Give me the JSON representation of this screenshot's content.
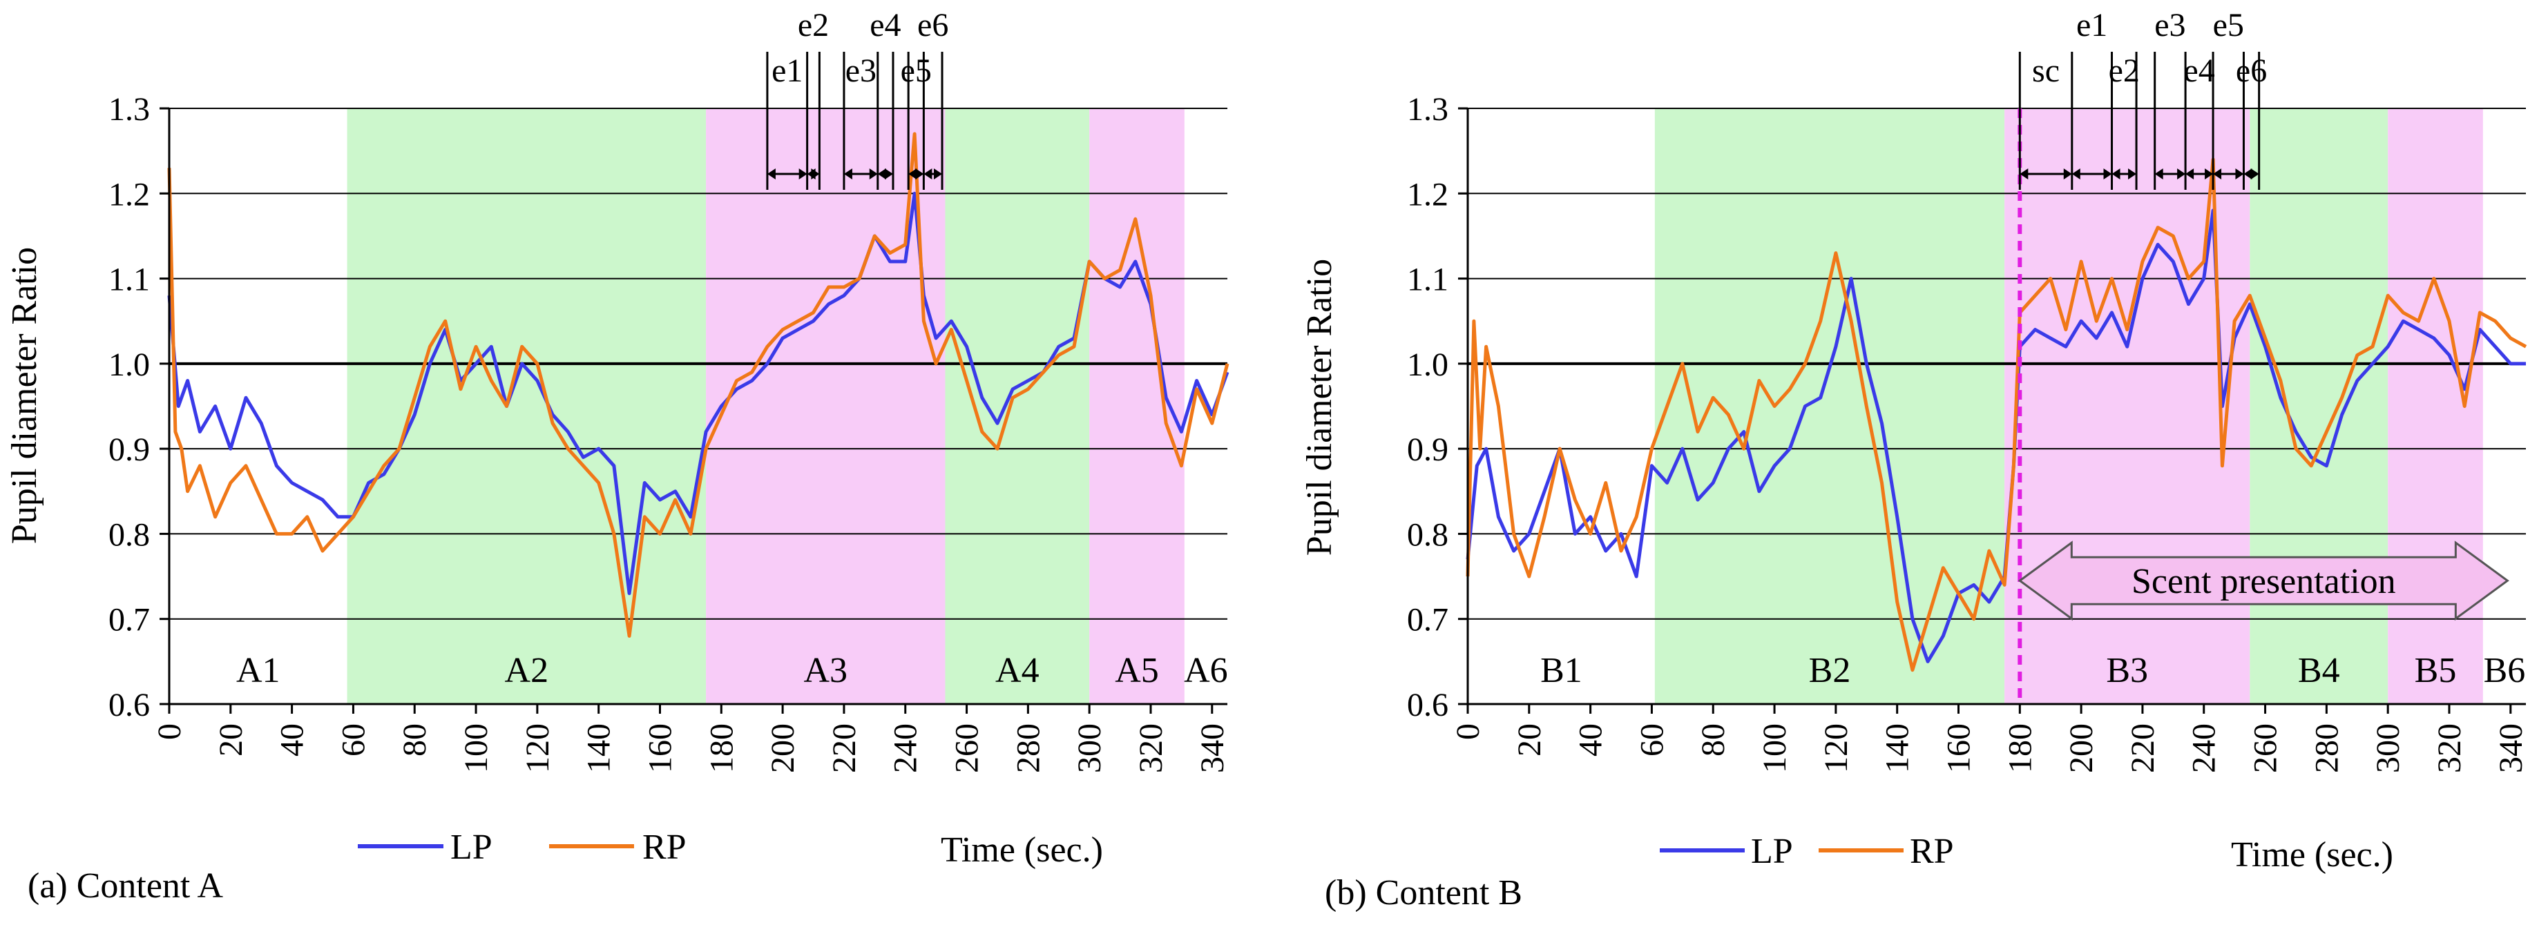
{
  "colors": {
    "lp": "#3a3ae8",
    "rp": "#f07818",
    "green_band": "#ccf7cc",
    "pink_band": "#f8ccf8",
    "dashed_line": "#e01ee0",
    "arrow_fill": "#f5c0f0"
  },
  "chart_data": [
    {
      "type": "line",
      "panel": "a",
      "caption": "(a) Content A",
      "xlabel": "Time (sec.)",
      "ylabel": "Pupil diameter Ratio",
      "xlim": [
        0,
        345
      ],
      "ylim": [
        0.6,
        1.3
      ],
      "xticks": [
        0,
        20,
        40,
        60,
        80,
        100,
        120,
        140,
        160,
        180,
        200,
        220,
        240,
        260,
        280,
        300,
        320,
        340
      ],
      "yticks": [
        0.6,
        0.7,
        0.8,
        0.9,
        1.0,
        1.1,
        1.2,
        1.3
      ],
      "xtick_labels": [
        "0",
        "20",
        "40",
        "60",
        "80",
        "100",
        "120",
        "140",
        "160",
        "180",
        "200",
        "220",
        "240",
        "260",
        "280",
        "300",
        "320",
        "340"
      ],
      "ytick_labels": [
        "0.6",
        "0.7",
        "0.8",
        "0.9",
        "1.0",
        "1.1",
        "1.2",
        "1.3"
      ],
      "grid": "horizontal",
      "legend": [
        {
          "name": "LP",
          "key": "lp"
        },
        {
          "name": "RP",
          "key": "rp"
        }
      ],
      "regions": [
        {
          "label": "A1",
          "start": 0,
          "end": 58,
          "kind": "white"
        },
        {
          "label": "A2",
          "start": 58,
          "end": 175,
          "kind": "green"
        },
        {
          "label": "A3",
          "start": 175,
          "end": 253,
          "kind": "pink"
        },
        {
          "label": "A4",
          "start": 253,
          "end": 300,
          "kind": "green"
        },
        {
          "label": "A5",
          "start": 300,
          "end": 331,
          "kind": "pink"
        },
        {
          "label": "A6",
          "start": 331,
          "end": 345,
          "kind": "white"
        }
      ],
      "events": [
        {
          "label": "e1",
          "start": 195,
          "end": 208
        },
        {
          "label": "e2",
          "start": 208,
          "end": 212
        },
        {
          "label": "e3",
          "start": 220,
          "end": 231
        },
        {
          "label": "e4",
          "start": 231,
          "end": 236
        },
        {
          "label": "e5",
          "start": 241,
          "end": 246
        },
        {
          "label": "e6",
          "start": 246,
          "end": 252
        }
      ],
      "series": [
        {
          "name": "LP",
          "key": "lp",
          "x": [
            0,
            3,
            6,
            10,
            15,
            20,
            25,
            30,
            35,
            40,
            45,
            50,
            55,
            60,
            65,
            70,
            75,
            80,
            85,
            90,
            95,
            100,
            105,
            110,
            115,
            120,
            125,
            130,
            135,
            140,
            145,
            150,
            155,
            160,
            165,
            170,
            175,
            180,
            185,
            190,
            195,
            200,
            205,
            210,
            215,
            220,
            225,
            230,
            235,
            240,
            243,
            246,
            250,
            255,
            260,
            265,
            270,
            275,
            280,
            285,
            290,
            295,
            300,
            305,
            310,
            315,
            320,
            325,
            330,
            335,
            340,
            345
          ],
          "y": [
            1.08,
            0.95,
            0.98,
            0.92,
            0.95,
            0.9,
            0.96,
            0.93,
            0.88,
            0.86,
            0.85,
            0.84,
            0.82,
            0.82,
            0.86,
            0.87,
            0.9,
            0.94,
            1.0,
            1.04,
            0.98,
            1.0,
            1.02,
            0.95,
            1.0,
            0.98,
            0.94,
            0.92,
            0.89,
            0.9,
            0.88,
            0.73,
            0.86,
            0.84,
            0.85,
            0.82,
            0.92,
            0.95,
            0.97,
            0.98,
            1.0,
            1.03,
            1.04,
            1.05,
            1.07,
            1.08,
            1.1,
            1.15,
            1.12,
            1.12,
            1.2,
            1.08,
            1.03,
            1.05,
            1.02,
            0.96,
            0.93,
            0.97,
            0.98,
            0.99,
            1.02,
            1.03,
            1.12,
            1.1,
            1.09,
            1.12,
            1.07,
            0.96,
            0.92,
            0.98,
            0.94,
            0.99
          ]
        },
        {
          "name": "RP",
          "key": "rp",
          "x": [
            0,
            2,
            4,
            6,
            10,
            15,
            20,
            25,
            30,
            35,
            40,
            45,
            50,
            55,
            60,
            65,
            70,
            75,
            80,
            85,
            90,
            95,
            100,
            105,
            110,
            115,
            120,
            125,
            130,
            135,
            140,
            145,
            150,
            155,
            160,
            165,
            170,
            175,
            180,
            185,
            190,
            195,
            200,
            205,
            210,
            215,
            220,
            225,
            230,
            235,
            240,
            243,
            246,
            250,
            255,
            260,
            265,
            270,
            275,
            280,
            285,
            290,
            295,
            300,
            305,
            310,
            315,
            320,
            325,
            330,
            335,
            340,
            345
          ],
          "y": [
            1.23,
            0.92,
            0.9,
            0.85,
            0.88,
            0.82,
            0.86,
            0.88,
            0.84,
            0.8,
            0.8,
            0.82,
            0.78,
            0.8,
            0.82,
            0.85,
            0.88,
            0.9,
            0.96,
            1.02,
            1.05,
            0.97,
            1.02,
            0.98,
            0.95,
            1.02,
            1.0,
            0.93,
            0.9,
            0.88,
            0.86,
            0.8,
            0.68,
            0.82,
            0.8,
            0.84,
            0.8,
            0.9,
            0.94,
            0.98,
            0.99,
            1.02,
            1.04,
            1.05,
            1.06,
            1.09,
            1.09,
            1.1,
            1.15,
            1.13,
            1.14,
            1.27,
            1.05,
            1.0,
            1.04,
            0.98,
            0.92,
            0.9,
            0.96,
            0.97,
            0.99,
            1.01,
            1.02,
            1.12,
            1.1,
            1.11,
            1.17,
            1.08,
            0.93,
            0.88,
            0.97,
            0.93,
            1.0
          ]
        }
      ]
    },
    {
      "type": "line",
      "panel": "b",
      "caption": "(b) Content B",
      "xlabel": "Time (sec.)",
      "ylabel": "Pupil diameter Ratio",
      "xlim": [
        0,
        345
      ],
      "ylim": [
        0.6,
        1.3
      ],
      "xticks": [
        0,
        20,
        40,
        60,
        80,
        100,
        120,
        140,
        160,
        180,
        200,
        220,
        240,
        260,
        280,
        300,
        320,
        340
      ],
      "yticks": [
        0.6,
        0.7,
        0.8,
        0.9,
        1.0,
        1.1,
        1.2,
        1.3
      ],
      "xtick_labels": [
        "0",
        "20",
        "40",
        "60",
        "80",
        "100",
        "120",
        "140",
        "160",
        "180",
        "200",
        "220",
        "240",
        "260",
        "280",
        "300",
        "320",
        "340"
      ],
      "ytick_labels": [
        "0.6",
        "0.7",
        "0.8",
        "0.9",
        "1.0",
        "1.1",
        "1.2",
        "1.3"
      ],
      "grid": "horizontal",
      "legend": [
        {
          "name": "LP",
          "key": "lp"
        },
        {
          "name": "RP",
          "key": "rp"
        }
      ],
      "regions": [
        {
          "label": "B1",
          "start": 0,
          "end": 61,
          "kind": "white"
        },
        {
          "label": "B2",
          "start": 61,
          "end": 175,
          "kind": "green"
        },
        {
          "label": "B3",
          "start": 175,
          "end": 255,
          "kind": "pink"
        },
        {
          "label": "B4",
          "start": 255,
          "end": 300,
          "kind": "green"
        },
        {
          "label": "B5",
          "start": 300,
          "end": 331,
          "kind": "pink"
        },
        {
          "label": "B6",
          "start": 331,
          "end": 345,
          "kind": "white"
        }
      ],
      "scent_marker": {
        "label": "sc",
        "x": 180
      },
      "scent_presentation": {
        "label": "Scent presentation",
        "start": 180,
        "end": 339,
        "y": 0.745
      },
      "events": [
        {
          "label": "sc",
          "start": 180,
          "end": 197
        },
        {
          "label": "e1",
          "start": 197,
          "end": 210
        },
        {
          "label": "e2",
          "start": 210,
          "end": 218
        },
        {
          "label": "e3",
          "start": 224,
          "end": 234
        },
        {
          "label": "e4",
          "start": 234,
          "end": 243
        },
        {
          "label": "e5",
          "start": 243,
          "end": 253
        },
        {
          "label": "e6",
          "start": 253,
          "end": 258
        }
      ],
      "series": [
        {
          "name": "LP",
          "key": "lp",
          "x": [
            0,
            3,
            6,
            10,
            15,
            20,
            25,
            30,
            35,
            40,
            45,
            50,
            55,
            60,
            65,
            70,
            75,
            80,
            85,
            90,
            95,
            100,
            105,
            110,
            115,
            120,
            125,
            130,
            135,
            140,
            145,
            150,
            155,
            160,
            165,
            170,
            175,
            178,
            180,
            185,
            190,
            195,
            200,
            205,
            210,
            215,
            220,
            225,
            230,
            235,
            240,
            243,
            246,
            250,
            255,
            260,
            265,
            270,
            275,
            280,
            285,
            290,
            295,
            300,
            305,
            310,
            315,
            320,
            325,
            330,
            335,
            340,
            345
          ],
          "y": [
            0.77,
            0.88,
            0.9,
            0.82,
            0.78,
            0.8,
            0.85,
            0.9,
            0.8,
            0.82,
            0.78,
            0.8,
            0.75,
            0.88,
            0.86,
            0.9,
            0.84,
            0.86,
            0.9,
            0.92,
            0.85,
            0.88,
            0.9,
            0.95,
            0.96,
            1.02,
            1.1,
            1.0,
            0.93,
            0.82,
            0.7,
            0.65,
            0.68,
            0.73,
            0.74,
            0.72,
            0.75,
            0.88,
            1.02,
            1.04,
            1.03,
            1.02,
            1.05,
            1.03,
            1.06,
            1.02,
            1.1,
            1.14,
            1.12,
            1.07,
            1.1,
            1.18,
            0.95,
            1.03,
            1.07,
            1.02,
            0.96,
            0.92,
            0.89,
            0.88,
            0.94,
            0.98,
            1.0,
            1.02,
            1.05,
            1.04,
            1.03,
            1.01,
            0.97,
            1.04,
            1.02,
            1.0,
            1.0
          ]
        },
        {
          "name": "RP",
          "key": "rp",
          "x": [
            0,
            2,
            4,
            6,
            10,
            15,
            20,
            25,
            30,
            35,
            40,
            45,
            50,
            55,
            60,
            65,
            70,
            75,
            80,
            85,
            90,
            95,
            100,
            105,
            110,
            115,
            120,
            125,
            130,
            135,
            140,
            145,
            150,
            155,
            160,
            165,
            170,
            175,
            178,
            180,
            185,
            190,
            195,
            200,
            205,
            210,
            215,
            220,
            225,
            230,
            235,
            240,
            243,
            246,
            250,
            255,
            260,
            265,
            270,
            275,
            280,
            285,
            290,
            295,
            300,
            305,
            310,
            315,
            320,
            325,
            330,
            335,
            340,
            345
          ],
          "y": [
            0.75,
            1.05,
            0.9,
            1.02,
            0.95,
            0.8,
            0.75,
            0.82,
            0.9,
            0.84,
            0.8,
            0.86,
            0.78,
            0.82,
            0.9,
            0.95,
            1.0,
            0.92,
            0.96,
            0.94,
            0.9,
            0.98,
            0.95,
            0.97,
            1.0,
            1.05,
            1.13,
            1.05,
            0.95,
            0.86,
            0.72,
            0.64,
            0.7,
            0.76,
            0.73,
            0.7,
            0.78,
            0.74,
            0.88,
            1.06,
            1.08,
            1.1,
            1.04,
            1.12,
            1.05,
            1.1,
            1.04,
            1.12,
            1.16,
            1.15,
            1.1,
            1.12,
            1.24,
            0.88,
            1.05,
            1.08,
            1.03,
            0.98,
            0.9,
            0.88,
            0.92,
            0.96,
            1.01,
            1.02,
            1.08,
            1.06,
            1.05,
            1.1,
            1.05,
            0.95,
            1.06,
            1.05,
            1.03,
            1.02
          ]
        }
      ]
    }
  ]
}
